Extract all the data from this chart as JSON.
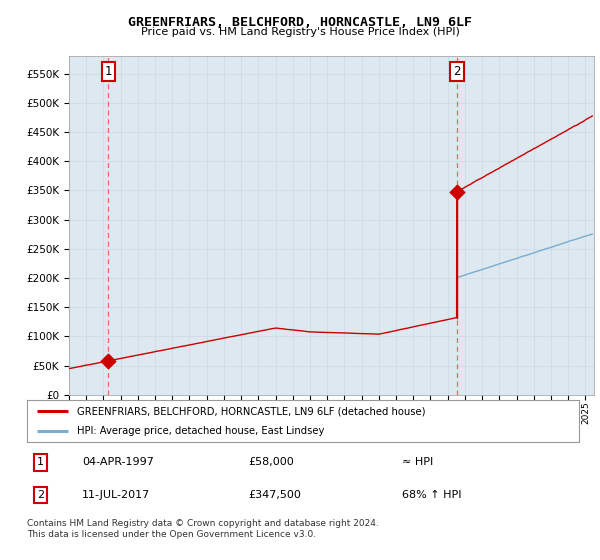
{
  "title": "GREENFRIARS, BELCHFORD, HORNCASTLE, LN9 6LF",
  "subtitle": "Price paid vs. HM Land Registry's House Price Index (HPI)",
  "legend_line1": "GREENFRIARS, BELCHFORD, HORNCASTLE, LN9 6LF (detached house)",
  "legend_line2": "HPI: Average price, detached house, East Lindsey",
  "sale1_label": "1",
  "sale1_date": "04-APR-1997",
  "sale1_price": "£58,000",
  "sale1_hpi": "≈ HPI",
  "sale2_label": "2",
  "sale2_date": "11-JUL-2017",
  "sale2_price": "£347,500",
  "sale2_hpi": "68% ↑ HPI",
  "footer": "Contains HM Land Registry data © Crown copyright and database right 2024.\nThis data is licensed under the Open Government Licence v3.0.",
  "sale1_year": 1997.28,
  "sale2_year": 2017.53,
  "sale1_value": 58000,
  "sale2_value": 347500,
  "red_line_color": "#cc0000",
  "blue_line_color": "#7aadcc",
  "dashed_line_color": "#ee6666",
  "grid_color": "#d0dce8",
  "bg_color": "#dde8f0",
  "plot_bg": "#ffffff",
  "ylim_min": 0,
  "ylim_max": 580000,
  "xlim_min": 1995.0,
  "xlim_max": 2025.5
}
